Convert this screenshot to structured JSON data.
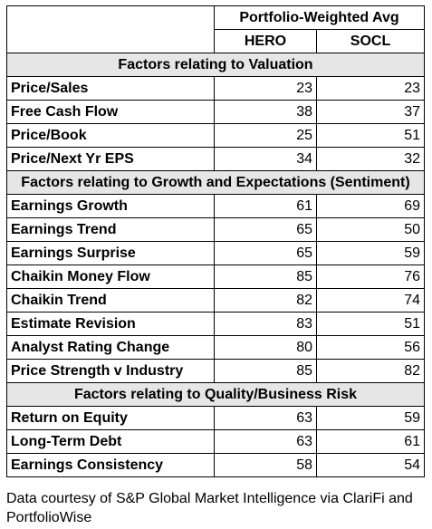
{
  "header": {
    "group_title": "Portfolio-Weighted Avg",
    "col1": "HERO",
    "col2": "SOCL"
  },
  "sections": [
    {
      "title": "Factors relating to Valuation",
      "rows": [
        {
          "label": "Price/Sales",
          "hero": "23",
          "socl": "23"
        },
        {
          "label": "Free Cash Flow",
          "hero": "38",
          "socl": "37"
        },
        {
          "label": "Price/Book",
          "hero": "25",
          "socl": "51"
        },
        {
          "label": "Price/Next Yr EPS",
          "hero": "34",
          "socl": "32"
        }
      ]
    },
    {
      "title": "Factors relating to Growth and Expectations (Sentiment)",
      "rows": [
        {
          "label": "Earnings Growth",
          "hero": "61",
          "socl": "69"
        },
        {
          "label": "Earnings Trend",
          "hero": "65",
          "socl": "50"
        },
        {
          "label": "Earnings Surprise",
          "hero": "65",
          "socl": "59"
        },
        {
          "label": "Chaikin Money Flow",
          "hero": "85",
          "socl": "76"
        },
        {
          "label": "Chaikin Trend",
          "hero": "82",
          "socl": "74"
        },
        {
          "label": "Estimate Revision",
          "hero": "83",
          "socl": "51"
        },
        {
          "label": "Analyst Rating Change",
          "hero": "80",
          "socl": "56"
        },
        {
          "label": "Price Strength v Industry",
          "hero": "85",
          "socl": "82"
        }
      ]
    },
    {
      "title": "Factors relating to Quality/Business Risk",
      "rows": [
        {
          "label": "Return on Equity",
          "hero": "63",
          "socl": "59"
        },
        {
          "label": "Long-Term Debt",
          "hero": "63",
          "socl": "61"
        },
        {
          "label": "Earnings Consistency",
          "hero": "58",
          "socl": "54"
        }
      ]
    }
  ],
  "footnote": "Data courtesy of S&P Global Market Intelligence via ClariFi and PortfolioWise"
}
